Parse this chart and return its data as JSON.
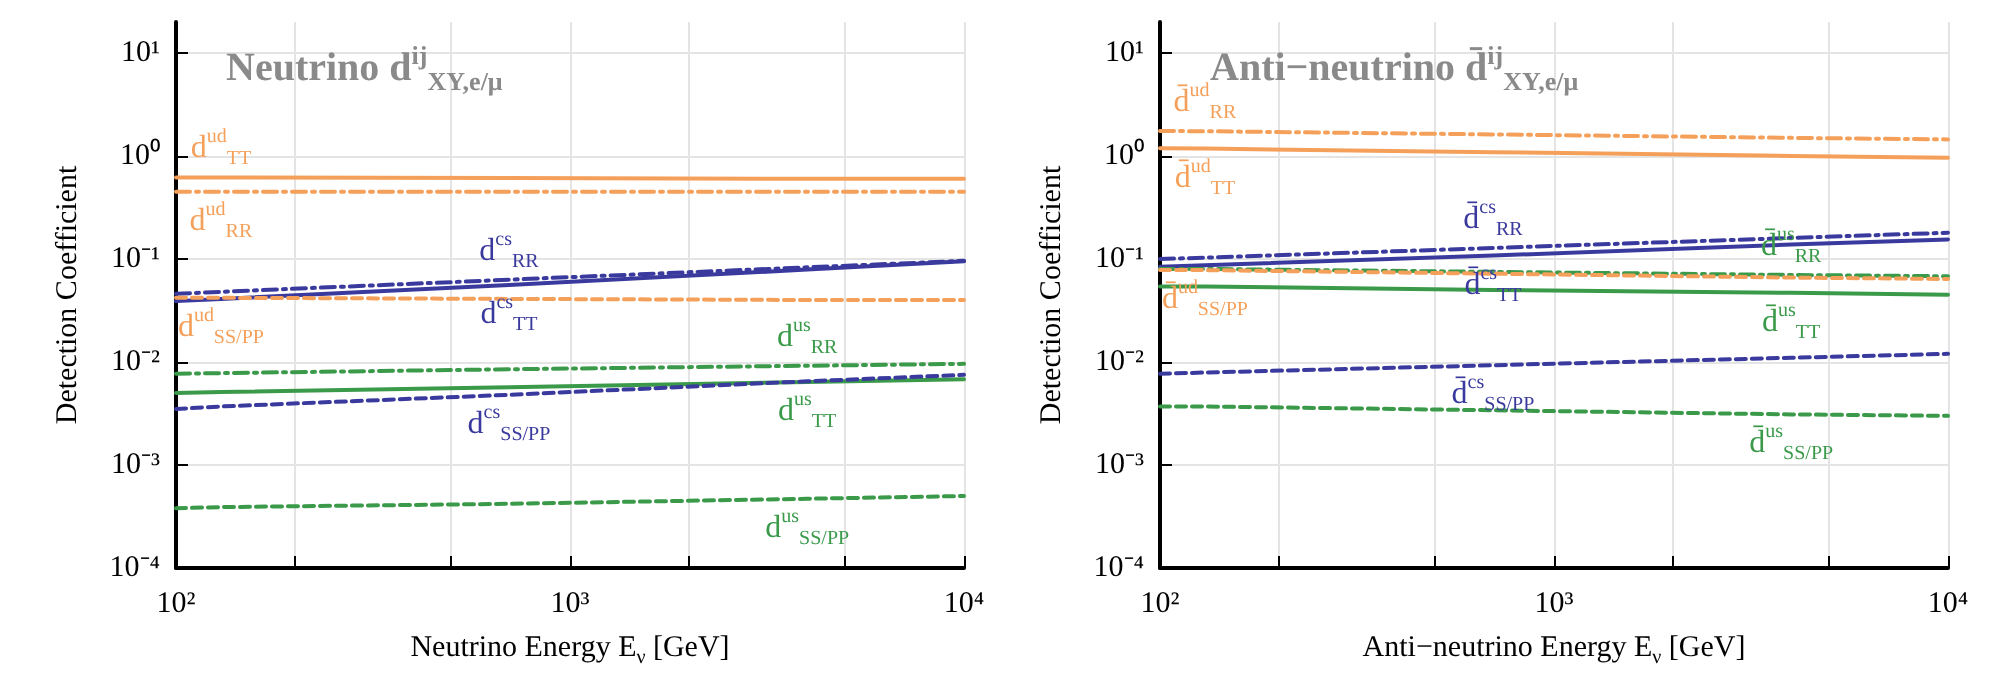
{
  "chart_data": [
    {
      "type": "line",
      "title": "Neutrino d$^{ij}$$_{XY,e/μ}$",
      "xlabel": "Neutrino Energy E$_{ν}$ [GeV]",
      "ylabel": "Detection Coefficient",
      "log": "xy",
      "grid": true,
      "x": [
        100,
        130,
        700,
        4000,
        10000
      ],
      "xlim": [
        100,
        10000
      ],
      "ylim": [
        0.0001,
        20
      ],
      "xticks": [
        {
          "value": 100,
          "label": "10²"
        },
        {
          "value": 200,
          "label": null
        },
        {
          "value": 500,
          "label": null
        },
        {
          "value": 1000,
          "label": "10³"
        },
        {
          "value": 2000,
          "label": null
        },
        {
          "value": 5000,
          "label": null
        },
        {
          "value": 10000,
          "label": "10⁴"
        }
      ],
      "yticks": [
        {
          "value": 0.0001,
          "label": "10⁻⁴"
        },
        {
          "value": 0.001,
          "label": "10⁻³"
        },
        {
          "value": 0.01,
          "label": "10⁻²"
        },
        {
          "value": 0.1,
          "label": "10⁻¹"
        },
        {
          "value": 1,
          "label": "10⁰"
        },
        {
          "value": 10,
          "label": "10¹"
        }
      ],
      "series": [
        {
          "name": "d$^{ud}$$_{TT}$",
          "color": "#f5a05a",
          "line_style": "solid",
          "values": [
            0.62,
            0.62,
            0.61,
            0.6,
            0.6
          ]
        },
        {
          "name": "d$^{ud}$$_{RR}$",
          "color": "#f5a05a",
          "line_style": "dashdot",
          "values": [
            0.45,
            0.45,
            0.45,
            0.45,
            0.45
          ]
        },
        {
          "name": "d$^{cs}$$_{RR}$",
          "color": "#3a3a9e",
          "line_style": "dashdot",
          "values": [
            0.046,
            0.048,
            0.063,
            0.083,
            0.096
          ]
        },
        {
          "name": "d$^{cs}$$_{TT}$",
          "color": "#3a3a9e",
          "line_style": "solid",
          "values": [
            0.039,
            0.041,
            0.056,
            0.079,
            0.095
          ]
        },
        {
          "name": "d$^{ud}$$_{SS/PP}$",
          "color": "#f5a05a",
          "line_style": "dashed",
          "values": [
            0.042,
            0.042,
            0.041,
            0.04,
            0.04
          ]
        },
        {
          "name": "d$^{us}$$_{RR}$",
          "color": "#3a9a4a",
          "line_style": "dashdot",
          "values": [
            0.0077,
            0.0078,
            0.0085,
            0.0092,
            0.0096
          ]
        },
        {
          "name": "d$^{us}$$_{TT}$",
          "color": "#3a9a4a",
          "line_style": "solid",
          "values": [
            0.005,
            0.0051,
            0.0057,
            0.0064,
            0.0068
          ]
        },
        {
          "name": "d$^{cs}$$_{SS/PP}$",
          "color": "#3a3a9e",
          "line_style": "dashed",
          "values": [
            0.0035,
            0.0037,
            0.0048,
            0.0065,
            0.0075
          ]
        },
        {
          "name": "d$^{us}$$_{SS/PP}$",
          "color": "#3a9a4a",
          "line_style": "dashed",
          "values": [
            0.00038,
            0.00039,
            0.00042,
            0.00047,
            0.0005
          ]
        }
      ]
    },
    {
      "type": "line",
      "title": "Anti−neutrino d̄$^{ij}$$_{XY,e/μ}$",
      "xlabel": "Anti−neutrino Energy E$_{ν}$ [GeV]",
      "ylabel": "Detection Coefficient",
      "log": "xy",
      "grid": true,
      "x": [
        100,
        130,
        700,
        4000,
        10000
      ],
      "xlim": [
        100,
        10000
      ],
      "ylim": [
        0.0001,
        20
      ],
      "xticks": [
        {
          "value": 100,
          "label": "10²"
        },
        {
          "value": 200,
          "label": null
        },
        {
          "value": 500,
          "label": null
        },
        {
          "value": 1000,
          "label": "10³"
        },
        {
          "value": 2000,
          "label": null
        },
        {
          "value": 5000,
          "label": null
        },
        {
          "value": 10000,
          "label": "10⁴"
        }
      ],
      "yticks": [
        {
          "value": 0.0001,
          "label": "10⁻⁴"
        },
        {
          "value": 0.001,
          "label": "10⁻³"
        },
        {
          "value": 0.01,
          "label": "10⁻²"
        },
        {
          "value": 0.1,
          "label": "10⁻¹"
        },
        {
          "value": 1,
          "label": "10⁰"
        },
        {
          "value": 10,
          "label": "10¹"
        }
      ],
      "series": [
        {
          "name": "d̄$^{ud}$$_{RR}$",
          "color": "#f5a05a",
          "line_style": "dashdot",
          "values": [
            1.75,
            1.74,
            1.62,
            1.5,
            1.45
          ]
        },
        {
          "name": "d̄$^{ud}$$_{TT}$",
          "color": "#f5a05a",
          "line_style": "solid",
          "values": [
            1.19,
            1.18,
            1.09,
            1.0,
            0.96
          ]
        },
        {
          "name": "d̄$^{cs}$$_{RR}$",
          "color": "#3a3a9e",
          "line_style": "dashdot",
          "values": [
            0.1,
            0.103,
            0.128,
            0.16,
            0.18
          ]
        },
        {
          "name": "d̄$^{cs}$$_{TT}$",
          "color": "#3a3a9e",
          "line_style": "solid",
          "values": [
            0.084,
            0.087,
            0.108,
            0.138,
            0.155
          ]
        },
        {
          "name": "d̄$^{us}$$_{RR}$",
          "color": "#3a9a4a",
          "line_style": "dashdot",
          "values": [
            0.08,
            0.08,
            0.075,
            0.07,
            0.068
          ]
        },
        {
          "name": "d̄$^{ud}$$_{SS/PP}$",
          "color": "#f5a05a",
          "line_style": "dashed",
          "values": [
            0.078,
            0.078,
            0.072,
            0.066,
            0.064
          ]
        },
        {
          "name": "d̄$^{us}$$_{TT}$",
          "color": "#3a9a4a",
          "line_style": "solid",
          "values": [
            0.054,
            0.054,
            0.05,
            0.047,
            0.045
          ]
        },
        {
          "name": "d̄$^{cs}$$_{SS/PP}$",
          "color": "#3a3a9e",
          "line_style": "dashed",
          "values": [
            0.0077,
            0.0079,
            0.0093,
            0.011,
            0.012
          ]
        },
        {
          "name": "d̄$^{us}$$_{SS/PP}$",
          "color": "#3a9a4a",
          "line_style": "dashed",
          "values": [
            0.0037,
            0.0037,
            0.0034,
            0.0031,
            0.003
          ]
        }
      ]
    }
  ]
}
